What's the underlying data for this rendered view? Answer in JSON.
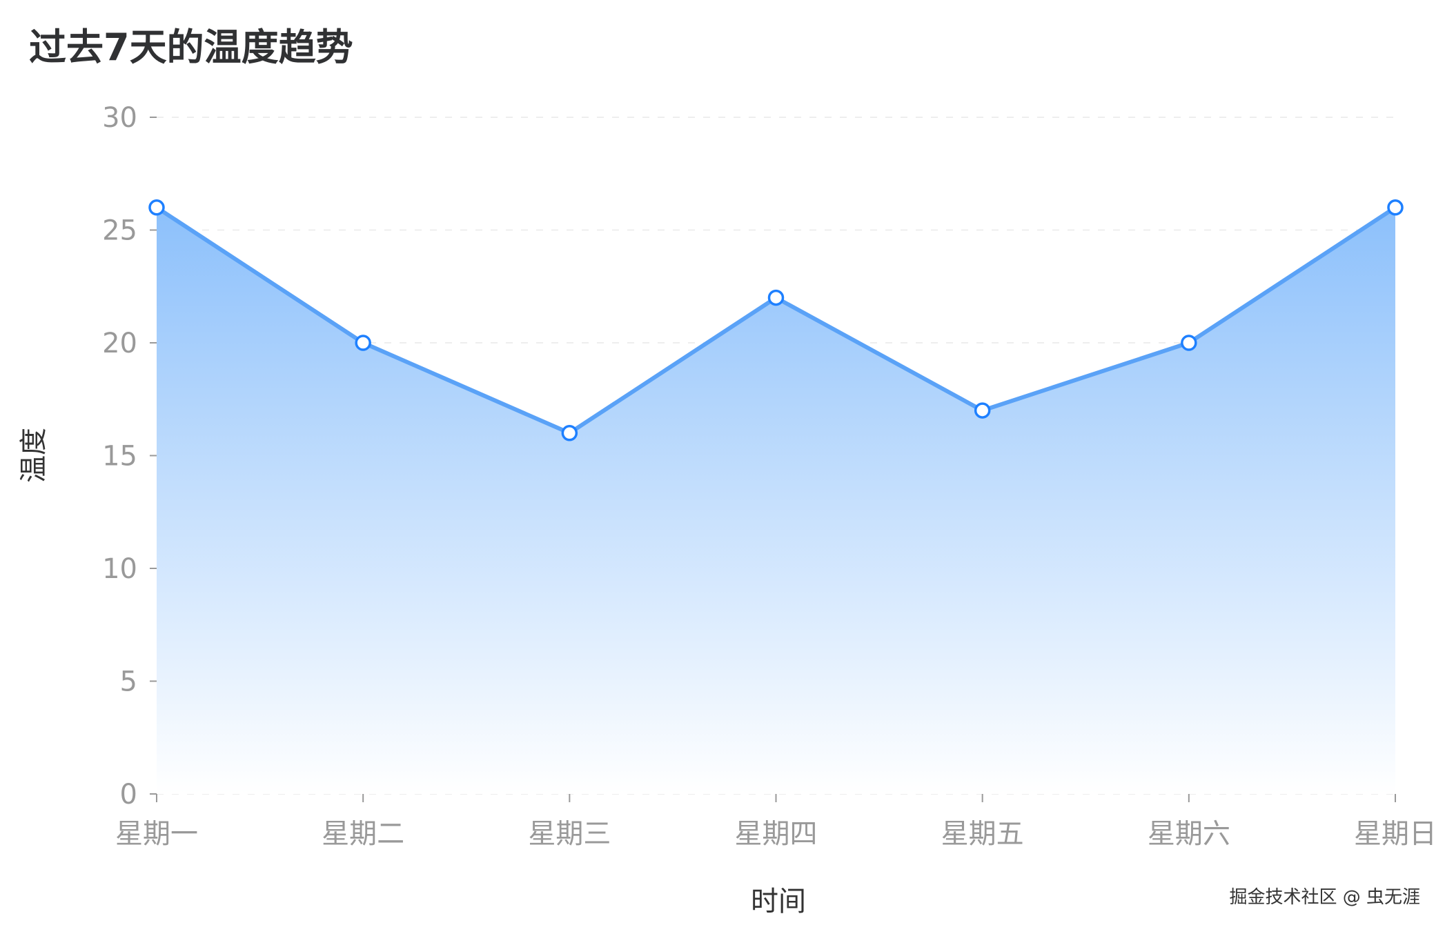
{
  "chart_data": {
    "type": "area",
    "title": "过去7天的温度趋势",
    "xlabel": "时间",
    "ylabel": "温度",
    "categories": [
      "星期一",
      "星期二",
      "星期三",
      "星期四",
      "星期五",
      "星期六",
      "星期日"
    ],
    "values": [
      26,
      20,
      16,
      22,
      17,
      20,
      26
    ],
    "ylim": [
      0,
      30
    ],
    "yticks": [
      "0",
      "5",
      "10",
      "15",
      "20",
      "25",
      "30"
    ],
    "grid": "horizontal dashed",
    "legend": "none",
    "colors": {
      "line": "#5aa2f7",
      "fill_top": "#8cc0fb",
      "fill_bottom": "#ffffff",
      "marker": "#1e80ff"
    }
  },
  "watermark": "掘金技术社区 @ 虫无涯"
}
